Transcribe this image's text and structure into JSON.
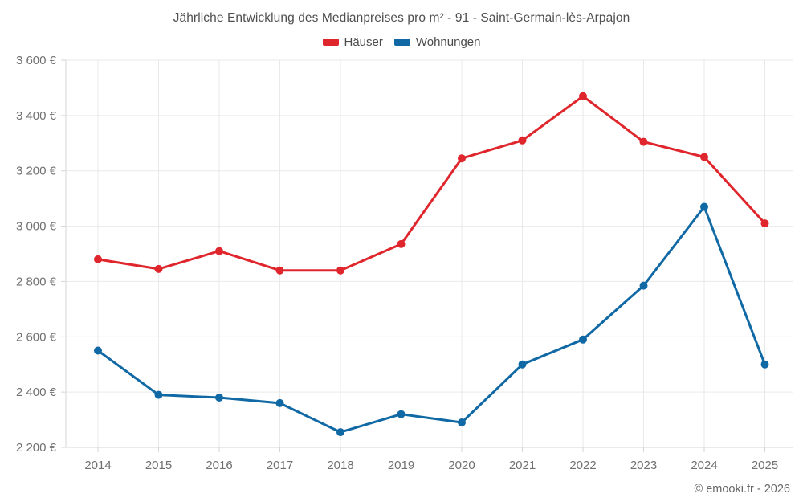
{
  "title": "Jährliche Entwicklung des Medianpreises pro m² - 91 - Saint-Germain-lès-Arpajon",
  "legend": [
    {
      "label": "Häuser",
      "color": "#e0262d"
    },
    {
      "label": "Wohnungen",
      "color": "#1069a4"
    }
  ],
  "footer": {
    "credit": "© emooki.fr - 2026"
  },
  "colors": {
    "hauser_red": "#e0262d",
    "wohnungen_blue": "#1069a4",
    "gridline": "#e9e9e9",
    "axis_line": "#d6d6d6",
    "tick_text": "#707070"
  },
  "chart_data": {
    "type": "line",
    "title": "Jährliche Entwicklung des Medianpreises pro m² - 91 - Saint-Germain-lès-Arpajon",
    "categories": [
      "2014",
      "2015",
      "2016",
      "2017",
      "2018",
      "2019",
      "2020",
      "2021",
      "2022",
      "2023",
      "2024",
      "2025"
    ],
    "series": [
      {
        "name": "Häuser",
        "color": "#e0262d",
        "values": [
          2880,
          2845,
          2910,
          2840,
          2840,
          2935,
          3245,
          3310,
          3470,
          3305,
          3250,
          3010
        ]
      },
      {
        "name": "Wohnungen",
        "color": "#1069a4",
        "values": [
          2550,
          2390,
          2380,
          2360,
          2255,
          2320,
          2290,
          2500,
          2590,
          2785,
          3070,
          2500
        ]
      }
    ],
    "xlabel": "",
    "ylabel": "",
    "ylim": [
      2200,
      3600
    ],
    "ytick_step": 200,
    "ytick_suffix": " €",
    "grid": true,
    "legend_position": "top"
  }
}
